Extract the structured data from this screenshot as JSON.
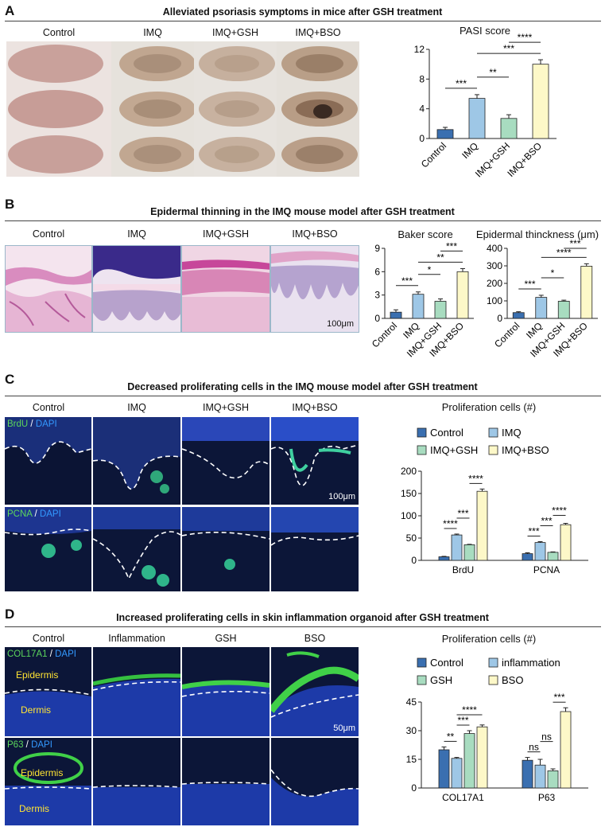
{
  "colors": {
    "control": "#3a6fb0",
    "imq": "#9ec7e6",
    "imq_gsh": "#a8dcc0",
    "imq_bso": "#fdf8c8",
    "brdu_green": "#5cd65c",
    "dapi_blue": "#3399ff",
    "label_yellow": "#ffe433"
  },
  "panel_a": {
    "letter": "A",
    "title": "Alleviated psoriasis symptoms in mice after GSH treatment",
    "columns": [
      "Control",
      "IMQ",
      "IMQ+GSH",
      "IMQ+BSO"
    ]
  },
  "panel_b": {
    "letter": "B",
    "title": "Epidermal thinning in the IMQ mouse model after GSH treatment",
    "columns": [
      "Control",
      "IMQ",
      "IMQ+GSH",
      "IMQ+BSO"
    ],
    "scale_bar": "100μm"
  },
  "panel_c": {
    "letter": "C",
    "title": "Decreased proliferating cells in the IMQ mouse model after GSH treatment",
    "columns": [
      "Control",
      "IMQ",
      "IMQ+GSH",
      "IMQ+BSO"
    ],
    "row1_stain": "BrdU",
    "row2_stain": "PCNA",
    "stain_sep": "/",
    "counterstain": "DAPI",
    "scale_bar": "100μm"
  },
  "panel_d": {
    "letter": "D",
    "title": "Increased proliferating cells in skin inflammation organoid after GSH treatment",
    "columns": [
      "Control",
      "Inflammation",
      "GSH",
      "BSO"
    ],
    "row1_stain": "COL17A1",
    "row2_stain": "P63",
    "stain_sep": "/",
    "counterstain": "DAPI",
    "epidermis": "Epidermis",
    "dermis": "Dermis",
    "scale_bar": "50μm"
  },
  "chart_data": [
    {
      "id": "pasi",
      "type": "bar",
      "title": "PASI score",
      "categories": [
        "Control",
        "IMQ",
        "IMQ+GSH",
        "IMQ+BSO"
      ],
      "values": [
        1.2,
        5.4,
        2.7,
        10.0
      ],
      "errors": [
        0.3,
        0.5,
        0.5,
        0.6
      ],
      "ylim": [
        0,
        12
      ],
      "yticks": [
        0,
        4,
        8,
        12
      ],
      "significance": [
        {
          "from": 0,
          "to": 1,
          "label": "***"
        },
        {
          "from": 1,
          "to": 2,
          "label": "**"
        },
        {
          "from": 1,
          "to": 3,
          "label": "***"
        },
        {
          "from": 2,
          "to": 3,
          "label": "****"
        }
      ]
    },
    {
      "id": "baker",
      "type": "bar",
      "title": "Baker score",
      "categories": [
        "Control",
        "IMQ",
        "IMQ+GSH",
        "IMQ+BSO"
      ],
      "values": [
        0.8,
        3.1,
        2.2,
        6.0
      ],
      "errors": [
        0.3,
        0.3,
        0.3,
        0.4
      ],
      "ylim": [
        0,
        9
      ],
      "yticks": [
        0,
        3,
        6,
        9
      ],
      "significance": [
        {
          "from": 0,
          "to": 1,
          "label": "***"
        },
        {
          "from": 1,
          "to": 2,
          "label": "*"
        },
        {
          "from": 1,
          "to": 3,
          "label": "**"
        },
        {
          "from": 2,
          "to": 3,
          "label": "***"
        }
      ]
    },
    {
      "id": "thickness",
      "type": "bar",
      "title": "Epidermal thinckness (μm)",
      "categories": [
        "Control",
        "IMQ",
        "IMQ+GSH",
        "IMQ+BSO"
      ],
      "values": [
        33,
        120,
        98,
        298
      ],
      "errors": [
        5,
        12,
        6,
        14
      ],
      "ylim": [
        0,
        400
      ],
      "yticks": [
        0,
        100,
        200,
        300,
        400
      ],
      "significance": [
        {
          "from": 0,
          "to": 1,
          "label": "***"
        },
        {
          "from": 1,
          "to": 2,
          "label": "*"
        },
        {
          "from": 1,
          "to": 3,
          "label": "****"
        },
        {
          "from": 2,
          "to": 3,
          "label": "***"
        }
      ]
    },
    {
      "id": "prolif_c",
      "type": "bar",
      "title": "Proliferation cells (#)",
      "categories": [
        "BrdU",
        "PCNA"
      ],
      "series": [
        {
          "name": "Control",
          "values": [
            8,
            15
          ],
          "errors": [
            1,
            2
          ]
        },
        {
          "name": "IMQ",
          "values": [
            57,
            40
          ],
          "errors": [
            2,
            2
          ]
        },
        {
          "name": "IMQ+GSH",
          "values": [
            35,
            18
          ],
          "errors": [
            1,
            1
          ]
        },
        {
          "name": "IMQ+BSO",
          "values": [
            155,
            80
          ],
          "errors": [
            5,
            3
          ]
        }
      ],
      "ylim": [
        0,
        200
      ],
      "yticks": [
        0,
        50,
        100,
        150,
        200
      ],
      "legend": "top",
      "significance": [
        {
          "group": 0,
          "from": 0,
          "to": 1,
          "label": "****"
        },
        {
          "group": 0,
          "from": 1,
          "to": 2,
          "label": "***"
        },
        {
          "group": 0,
          "from": 2,
          "to": 3,
          "label": "****"
        },
        {
          "group": 1,
          "from": 0,
          "to": 1,
          "label": "***"
        },
        {
          "group": 1,
          "from": 1,
          "to": 2,
          "label": "***"
        },
        {
          "group": 1,
          "from": 2,
          "to": 3,
          "label": "****"
        }
      ]
    },
    {
      "id": "prolif_d",
      "type": "bar",
      "title": "Proliferation cells (#)",
      "categories": [
        "COL17A1",
        "P63"
      ],
      "series": [
        {
          "name": "Control",
          "values": [
            20,
            14.5
          ],
          "errors": [
            1.5,
            1.5
          ]
        },
        {
          "name": "inflammation",
          "values": [
            15.5,
            12
          ],
          "errors": [
            0.5,
            3
          ]
        },
        {
          "name": "GSH",
          "values": [
            28.5,
            9
          ],
          "errors": [
            1.5,
            1
          ]
        },
        {
          "name": "BSO",
          "values": [
            32,
            40
          ],
          "errors": [
            1,
            2
          ]
        }
      ],
      "ylim": [
        0,
        45
      ],
      "yticks": [
        0,
        15,
        30,
        45
      ],
      "legend": "top",
      "significance": [
        {
          "group": 0,
          "from": 0,
          "to": 1,
          "label": "**"
        },
        {
          "group": 0,
          "from": 1,
          "to": 2,
          "label": "***"
        },
        {
          "group": 0,
          "from": 1,
          "to": 3,
          "label": "****"
        },
        {
          "group": 1,
          "from": 0,
          "to": 1,
          "label": "ns"
        },
        {
          "group": 1,
          "from": 1,
          "to": 2,
          "label": "ns"
        },
        {
          "group": 1,
          "from": 2,
          "to": 3,
          "label": "***"
        }
      ]
    }
  ]
}
